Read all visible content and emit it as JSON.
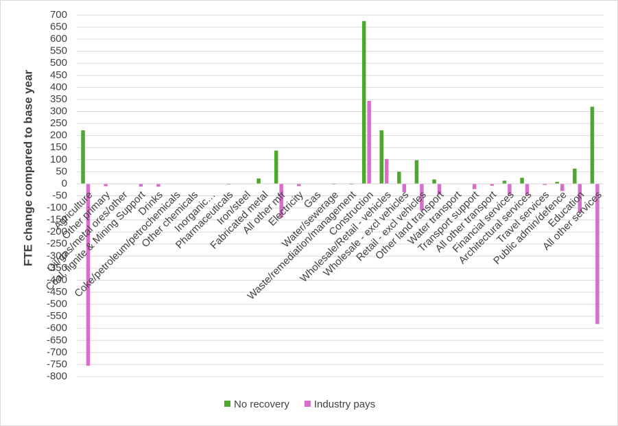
{
  "chart_data": {
    "type": "bar",
    "y_label": "FTE change compared to base year",
    "categories": [
      "Agriculture",
      "Other primary",
      "Oil/gas/metal ores/other",
      "Coal, lignite & Mining Support",
      "Drinks",
      "Coke/petroleum/petrochemicals",
      "Other chemicals",
      "Inorganic…",
      "Pharmaceuticals",
      "Iron/steel",
      "Fabricated metal",
      "All other mfr",
      "Electricity",
      "Gas",
      "Water/sewerage",
      "Waste/remediation/management",
      "Construction",
      "Wholesale/Retail - vehicles",
      "Wholesale - excl vehicles",
      "Retail - excl vehicles",
      "Other land transport",
      "Water transport",
      "Transport support",
      "All other transport",
      "Financial services",
      "Architectural services",
      "Travel services",
      "Public admin/defence",
      "Education",
      "All other services"
    ],
    "series": [
      {
        "name": "No recovery",
        "color": "#4ea72e",
        "values": [
          222,
          0,
          0,
          0,
          0,
          0,
          0,
          0,
          0,
          0,
          22,
          138,
          0,
          0,
          0,
          0,
          675,
          222,
          50,
          98,
          18,
          0,
          0,
          0,
          13,
          25,
          0,
          8,
          63,
          320
        ]
      },
      {
        "name": "Industry pays",
        "color": "#d86ecc",
        "values": [
          -755,
          -10,
          0,
          -12,
          -12,
          0,
          0,
          0,
          -3,
          0,
          0,
          -140,
          -10,
          0,
          -3,
          -3,
          344,
          103,
          -35,
          -111,
          -45,
          0,
          -22,
          -8,
          -45,
          -45,
          -5,
          -30,
          -120,
          -582
        ]
      }
    ],
    "ylim": [
      -800,
      700
    ],
    "yticks": [
      -800,
      -750,
      -700,
      -650,
      -600,
      -550,
      -500,
      -450,
      -400,
      -350,
      -300,
      -250,
      -200,
      -150,
      -100,
      -50,
      0,
      50,
      100,
      150,
      200,
      250,
      300,
      350,
      400,
      450,
      500,
      550,
      600,
      650,
      700
    ],
    "grid": true,
    "legend": "bottom"
  }
}
